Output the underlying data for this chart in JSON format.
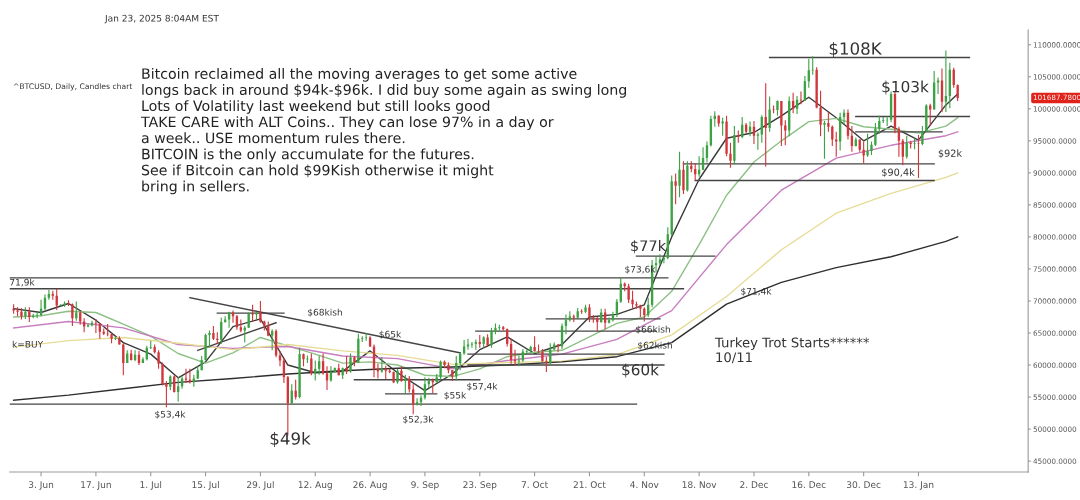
{
  "chart_data": {
    "type": "candlestick",
    "subtitle": "^BTCUSD, Daily, Candles chart",
    "x": [
      "2024-05-27",
      "2024-05-28",
      "2024-05-29",
      "2024-05-30",
      "2024-05-31",
      "2024-06-01",
      "2024-06-02",
      "2024-06-03",
      "2024-06-04",
      "2024-06-05",
      "2024-06-06",
      "2024-06-07",
      "2024-06-08",
      "2024-06-09",
      "2024-06-10",
      "2024-06-11",
      "2024-06-12",
      "2024-06-13",
      "2024-06-14",
      "2024-06-15",
      "2024-06-16",
      "2024-06-17",
      "2024-06-18",
      "2024-06-19",
      "2024-06-20",
      "2024-06-21",
      "2024-06-22",
      "2024-06-23",
      "2024-06-24",
      "2024-06-25",
      "2024-06-26",
      "2024-06-27",
      "2024-06-28",
      "2024-06-29",
      "2024-06-30",
      "2024-07-01",
      "2024-07-02",
      "2024-07-03",
      "2024-07-04",
      "2024-07-05",
      "2024-07-06",
      "2024-07-07",
      "2024-07-08",
      "2024-07-09",
      "2024-07-10",
      "2024-07-11",
      "2024-07-12",
      "2024-07-13",
      "2024-07-14",
      "2024-07-15",
      "2024-07-16",
      "2024-07-17",
      "2024-07-18",
      "2024-07-19",
      "2024-07-20",
      "2024-07-21",
      "2024-07-22",
      "2024-07-23",
      "2024-07-24",
      "2024-07-25",
      "2024-07-26",
      "2024-07-27",
      "2024-07-28",
      "2024-07-29",
      "2024-07-30",
      "2024-07-31",
      "2024-08-01",
      "2024-08-02",
      "2024-08-03",
      "2024-08-04",
      "2024-08-05",
      "2024-08-06",
      "2024-08-07",
      "2024-08-08",
      "2024-08-09",
      "2024-08-10",
      "2024-08-11",
      "2024-08-12",
      "2024-08-13",
      "2024-08-14",
      "2024-08-15",
      "2024-08-16",
      "2024-08-17",
      "2024-08-18",
      "2024-08-19",
      "2024-08-20",
      "2024-08-21",
      "2024-08-22",
      "2024-08-23",
      "2024-08-24",
      "2024-08-25",
      "2024-08-26",
      "2024-08-27",
      "2024-08-28",
      "2024-08-29",
      "2024-08-30",
      "2024-08-31",
      "2024-09-01",
      "2024-09-02",
      "2024-09-03",
      "2024-09-04",
      "2024-09-05",
      "2024-09-06",
      "2024-09-07",
      "2024-09-08",
      "2024-09-09",
      "2024-09-10",
      "2024-09-11",
      "2024-09-12",
      "2024-09-13",
      "2024-09-14",
      "2024-09-15",
      "2024-09-16",
      "2024-09-17",
      "2024-09-18",
      "2024-09-19",
      "2024-09-20",
      "2024-09-21",
      "2024-09-22",
      "2024-09-23",
      "2024-09-24",
      "2024-09-25",
      "2024-09-26",
      "2024-09-27",
      "2024-09-28",
      "2024-09-29",
      "2024-09-30",
      "2024-10-01",
      "2024-10-02",
      "2024-10-03",
      "2024-10-04",
      "2024-10-05",
      "2024-10-06",
      "2024-10-07",
      "2024-10-08",
      "2024-10-09",
      "2024-10-10",
      "2024-10-11",
      "2024-10-12",
      "2024-10-13",
      "2024-10-14",
      "2024-10-15",
      "2024-10-16",
      "2024-10-17",
      "2024-10-18",
      "2024-10-19",
      "2024-10-20",
      "2024-10-21",
      "2024-10-22",
      "2024-10-23",
      "2024-10-24",
      "2024-10-25",
      "2024-10-26",
      "2024-10-27",
      "2024-10-28",
      "2024-10-29",
      "2024-10-30",
      "2024-10-31",
      "2024-11-01",
      "2024-11-02",
      "2024-11-03",
      "2024-11-04",
      "2024-11-05",
      "2024-11-06",
      "2024-11-07",
      "2024-11-08",
      "2024-11-09",
      "2024-11-10",
      "2024-11-11",
      "2024-11-12",
      "2024-11-13",
      "2024-11-14",
      "2024-11-15",
      "2024-11-16",
      "2024-11-17",
      "2024-11-18",
      "2024-11-19",
      "2024-11-20",
      "2024-11-21",
      "2024-11-22",
      "2024-11-23",
      "2024-11-24",
      "2024-11-25",
      "2024-11-26",
      "2024-11-27",
      "2024-11-28",
      "2024-11-29",
      "2024-11-30",
      "2024-12-01",
      "2024-12-02",
      "2024-12-03",
      "2024-12-04",
      "2024-12-05",
      "2024-12-06",
      "2024-12-07",
      "2024-12-08",
      "2024-12-09",
      "2024-12-10",
      "2024-12-11",
      "2024-12-12",
      "2024-12-13",
      "2024-12-14",
      "2024-12-15",
      "2024-12-16",
      "2024-12-17",
      "2024-12-18",
      "2024-12-19",
      "2024-12-20",
      "2024-12-21",
      "2024-12-22",
      "2024-12-23",
      "2024-12-24",
      "2024-12-25",
      "2024-12-26",
      "2024-12-27",
      "2024-12-28",
      "2024-12-29",
      "2024-12-30",
      "2024-12-31",
      "2025-01-01",
      "2025-01-02",
      "2025-01-03",
      "2025-01-04",
      "2025-01-05",
      "2025-01-06",
      "2025-01-07",
      "2025-01-08",
      "2025-01-09",
      "2025-01-10",
      "2025-01-11",
      "2025-01-12",
      "2025-01-13",
      "2025-01-14",
      "2025-01-15",
      "2025-01-16",
      "2025-01-17",
      "2025-01-18",
      "2025-01-19",
      "2025-01-20",
      "2025-01-21",
      "2025-01-22",
      "2025-01-23"
    ],
    "ohlc": [
      [
        68800,
        69500,
        68000,
        68500
      ],
      [
        68500,
        69000,
        67600,
        68300
      ],
      [
        68300,
        68900,
        67100,
        67600
      ],
      [
        67600,
        69000,
        67200,
        68300
      ],
      [
        68300,
        69000,
        66700,
        67500
      ],
      [
        67500,
        68000,
        67300,
        67700
      ],
      [
        67700,
        68200,
        67300,
        67800
      ],
      [
        67800,
        70200,
        67600,
        68800
      ],
      [
        68800,
        71000,
        68600,
        70500
      ],
      [
        70500,
        71700,
        70200,
        71100
      ],
      [
        71100,
        71600,
        70200,
        70800
      ],
      [
        70800,
        71900,
        68600,
        69300
      ],
      [
        69300,
        69500,
        69200,
        69400
      ],
      [
        69400,
        69900,
        69100,
        69600
      ],
      [
        69600,
        70100,
        69200,
        69500
      ],
      [
        69500,
        69600,
        66100,
        67300
      ],
      [
        67300,
        69900,
        66900,
        68200
      ],
      [
        68200,
        68400,
        66300,
        66800
      ],
      [
        66800,
        67300,
        65100,
        66000
      ],
      [
        66000,
        66500,
        65900,
        66200
      ],
      [
        66200,
        66900,
        66000,
        66600
      ],
      [
        66600,
        67200,
        65000,
        66500
      ],
      [
        66500,
        66500,
        64100,
        65200
      ],
      [
        65200,
        65700,
        64700,
        64900
      ],
      [
        64900,
        66400,
        64500,
        64800
      ],
      [
        64800,
        65000,
        63400,
        64100
      ],
      [
        64100,
        64500,
        63900,
        64200
      ],
      [
        64200,
        64500,
        63200,
        63200
      ],
      [
        63200,
        63400,
        58400,
        60300
      ],
      [
        60300,
        62300,
        60300,
        61800
      ],
      [
        61800,
        62400,
        60700,
        60800
      ],
      [
        60800,
        62300,
        60600,
        61600
      ],
      [
        61600,
        62200,
        60000,
        60300
      ],
      [
        60300,
        61200,
        60300,
        60900
      ],
      [
        60900,
        63000,
        60700,
        62700
      ],
      [
        62700,
        63800,
        62500,
        62800
      ],
      [
        62800,
        63200,
        61800,
        62000
      ],
      [
        62000,
        62300,
        59400,
        60200
      ],
      [
        60200,
        60400,
        56800,
        57000
      ],
      [
        57000,
        57500,
        53400,
        56600
      ],
      [
        56600,
        58400,
        56100,
        58200
      ],
      [
        58200,
        58400,
        55700,
        55800
      ],
      [
        55800,
        58100,
        54300,
        56700
      ],
      [
        56700,
        58200,
        56300,
        57900
      ],
      [
        57900,
        59400,
        57200,
        57700
      ],
      [
        57700,
        59400,
        57100,
        57300
      ],
      [
        57300,
        58500,
        56600,
        57900
      ],
      [
        57900,
        59800,
        57800,
        59200
      ],
      [
        59200,
        61400,
        59200,
        60800
      ],
      [
        60800,
        64900,
        60700,
        64700
      ],
      [
        64700,
        65400,
        62700,
        65000
      ],
      [
        65000,
        66100,
        63900,
        64100
      ],
      [
        64100,
        65100,
        63300,
        63900
      ],
      [
        63900,
        67400,
        63300,
        66700
      ],
      [
        66700,
        67600,
        66600,
        67100
      ],
      [
        67100,
        68300,
        65800,
        68200
      ],
      [
        68200,
        68500,
        66600,
        67600
      ],
      [
        67600,
        67800,
        65500,
        65900
      ],
      [
        65900,
        67100,
        65100,
        65400
      ],
      [
        65400,
        66100,
        63500,
        65800
      ],
      [
        65800,
        68200,
        65800,
        68000
      ],
      [
        68000,
        69400,
        66700,
        67900
      ],
      [
        67900,
        68300,
        67100,
        68200
      ],
      [
        68200,
        70000,
        66600,
        66800
      ],
      [
        66800,
        66900,
        65400,
        66200
      ],
      [
        66200,
        66800,
        64500,
        64600
      ],
      [
        64600,
        65600,
        62300,
        65300
      ],
      [
        65300,
        65600,
        61200,
        61500
      ],
      [
        61500,
        62200,
        59800,
        60700
      ],
      [
        60700,
        61100,
        57200,
        58100
      ],
      [
        58100,
        58300,
        49000,
        54000
      ],
      [
        54000,
        57000,
        54000,
        56000
      ],
      [
        56000,
        57700,
        54600,
        55000
      ],
      [
        55000,
        62700,
        54800,
        61700
      ],
      [
        61700,
        61800,
        59800,
        60900
      ],
      [
        60900,
        61500,
        60300,
        61000
      ],
      [
        61000,
        61800,
        58400,
        58700
      ],
      [
        58700,
        60700,
        57600,
        59400
      ],
      [
        59400,
        61500,
        58500,
        60600
      ],
      [
        60600,
        61800,
        58500,
        58700
      ],
      [
        58700,
        59800,
        56100,
        57600
      ],
      [
        57600,
        59800,
        57400,
        58900
      ],
      [
        58900,
        59600,
        58800,
        59500
      ],
      [
        59500,
        60200,
        58400,
        58400
      ],
      [
        58400,
        59600,
        57800,
        59500
      ],
      [
        59500,
        61400,
        58600,
        59000
      ],
      [
        59000,
        61800,
        58800,
        61200
      ],
      [
        61200,
        61400,
        59800,
        60400
      ],
      [
        60400,
        64900,
        60300,
        64100
      ],
      [
        64100,
        64500,
        63600,
        64200
      ],
      [
        64200,
        65000,
        63800,
        64300
      ],
      [
        64300,
        64500,
        62800,
        62900
      ],
      [
        62900,
        63200,
        58100,
        59400
      ],
      [
        59400,
        60200,
        57900,
        59000
      ],
      [
        59000,
        61200,
        58800,
        59400
      ],
      [
        59400,
        59900,
        57800,
        59100
      ],
      [
        59100,
        59400,
        58700,
        58900
      ],
      [
        58900,
        59000,
        57200,
        57300
      ],
      [
        57300,
        59400,
        57100,
        59100
      ],
      [
        59100,
        59800,
        57400,
        57500
      ],
      [
        57500,
        58500,
        55600,
        57900
      ],
      [
        57900,
        58300,
        55700,
        56200
      ],
      [
        56200,
        57000,
        52300,
        53900
      ],
      [
        53900,
        54800,
        53700,
        54200
      ],
      [
        54200,
        55300,
        53600,
        54900
      ],
      [
        54900,
        58100,
        54600,
        57000
      ],
      [
        57000,
        58000,
        56400,
        57600
      ],
      [
        57600,
        57900,
        55600,
        57300
      ],
      [
        57300,
        58600,
        57300,
        58100
      ],
      [
        58100,
        60700,
        57700,
        60500
      ],
      [
        60500,
        60700,
        59500,
        60000
      ],
      [
        60000,
        60400,
        58700,
        59200
      ],
      [
        59200,
        59200,
        57500,
        58200
      ],
      [
        58200,
        61400,
        57600,
        60300
      ],
      [
        60300,
        61800,
        59200,
        61800
      ],
      [
        61800,
        63900,
        61600,
        62900
      ],
      [
        62900,
        64100,
        62400,
        63200
      ],
      [
        63200,
        63600,
        62700,
        63300
      ],
      [
        63300,
        64000,
        62400,
        63600
      ],
      [
        63600,
        64700,
        62700,
        63300
      ],
      [
        63300,
        64500,
        62700,
        64300
      ],
      [
        64300,
        64800,
        62900,
        63100
      ],
      [
        63100,
        65800,
        62700,
        65200
      ],
      [
        65200,
        66500,
        64800,
        65800
      ],
      [
        65800,
        66300,
        65400,
        65900
      ],
      [
        65900,
        66100,
        65400,
        65600
      ],
      [
        65600,
        65700,
        62900,
        63300
      ],
      [
        63300,
        64100,
        60200,
        60800
      ],
      [
        60800,
        62400,
        59900,
        60600
      ],
      [
        60600,
        61500,
        59800,
        60700
      ],
      [
        60700,
        62500,
        60500,
        62100
      ],
      [
        62100,
        62400,
        61700,
        62200
      ],
      [
        62200,
        63000,
        61900,
        62800
      ],
      [
        62800,
        64500,
        62100,
        62200
      ],
      [
        62200,
        63200,
        61800,
        62100
      ],
      [
        62100,
        62500,
        60500,
        60600
      ],
      [
        60600,
        61300,
        58900,
        60300
      ],
      [
        60300,
        63400,
        60100,
        62400
      ],
      [
        62400,
        63500,
        62400,
        63200
      ],
      [
        63200,
        63300,
        62000,
        62900
      ],
      [
        62900,
        66500,
        62500,
        66100
      ],
      [
        66100,
        67900,
        64800,
        67000
      ],
      [
        67000,
        68400,
        66800,
        67600
      ],
      [
        67600,
        67900,
        66700,
        67400
      ],
      [
        67400,
        68900,
        67300,
        68400
      ],
      [
        68400,
        68700,
        68000,
        68300
      ],
      [
        68300,
        69400,
        68100,
        69000
      ],
      [
        69000,
        69500,
        66700,
        67400
      ],
      [
        67400,
        67800,
        66600,
        67300
      ],
      [
        67300,
        67500,
        65300,
        66700
      ],
      [
        66700,
        68800,
        66600,
        68200
      ],
      [
        68200,
        68800,
        65600,
        66600
      ],
      [
        66600,
        67400,
        66500,
        67000
      ],
      [
        67000,
        68300,
        66800,
        67900
      ],
      [
        67900,
        70300,
        67500,
        69900
      ],
      [
        69900,
        73600,
        69700,
        72700
      ],
      [
        72700,
        72900,
        71500,
        72300
      ],
      [
        72300,
        72700,
        69700,
        70200
      ],
      [
        70200,
        71600,
        68800,
        69500
      ],
      [
        69500,
        69900,
        68800,
        69300
      ],
      [
        69300,
        69400,
        67500,
        68800
      ],
      [
        68800,
        69000,
        66800,
        67800
      ],
      [
        67800,
        70500,
        67500,
        69400
      ],
      [
        69400,
        76400,
        69000,
        75600
      ],
      [
        75600,
        76900,
        74500,
        75900
      ],
      [
        75900,
        77300,
        75600,
        76500
      ],
      [
        76500,
        76900,
        75900,
        76700
      ],
      [
        76700,
        81500,
        76500,
        80400
      ],
      [
        80400,
        89600,
        80200,
        88700
      ],
      [
        88700,
        89900,
        85100,
        88000
      ],
      [
        88000,
        93300,
        86200,
        90500
      ],
      [
        90500,
        91800,
        86700,
        87300
      ],
      [
        87300,
        91800,
        87100,
        91100
      ],
      [
        91100,
        91800,
        90100,
        90600
      ],
      [
        90600,
        91500,
        88800,
        89800
      ],
      [
        89800,
        92600,
        89400,
        90500
      ],
      [
        90500,
        94000,
        90400,
        92300
      ],
      [
        92300,
        94900,
        91600,
        94300
      ],
      [
        94300,
        98900,
        94100,
        98400
      ],
      [
        98400,
        99600,
        97200,
        98900
      ],
      [
        98900,
        99000,
        97200,
        97700
      ],
      [
        97700,
        98600,
        95800,
        98000
      ],
      [
        98000,
        98900,
        92600,
        93000
      ],
      [
        93000,
        94700,
        90800,
        91900
      ],
      [
        91900,
        97300,
        91300,
        95900
      ],
      [
        95900,
        96600,
        94700,
        95600
      ],
      [
        95600,
        98700,
        95400,
        97500
      ],
      [
        97500,
        97800,
        96200,
        96400
      ],
      [
        96400,
        98000,
        95700,
        97200
      ],
      [
        97200,
        98100,
        94500,
        95800
      ],
      [
        95800,
        96300,
        93600,
        96000
      ],
      [
        96000,
        99000,
        94700,
        98700
      ],
      [
        98700,
        104000,
        91000,
        97000
      ],
      [
        97000,
        101900,
        96400,
        99900
      ],
      [
        99900,
        100500,
        99300,
        99800
      ],
      [
        99800,
        101300,
        98900,
        101200
      ],
      [
        101200,
        101200,
        94200,
        97400
      ],
      [
        97400,
        98200,
        94300,
        96600
      ],
      [
        96600,
        101900,
        95700,
        101200
      ],
      [
        101200,
        102500,
        99300,
        100000
      ],
      [
        100000,
        102000,
        99200,
        101400
      ],
      [
        101400,
        102700,
        100700,
        101300
      ],
      [
        101300,
        105100,
        101200,
        104300
      ],
      [
        104300,
        107800,
        103300,
        106000
      ],
      [
        106000,
        108200,
        105300,
        106100
      ],
      [
        106100,
        106500,
        100100,
        100200
      ],
      [
        100200,
        102800,
        95700,
        97500
      ],
      [
        97500,
        98100,
        92200,
        97800
      ],
      [
        97800,
        99500,
        96400,
        97200
      ],
      [
        97200,
        97400,
        94200,
        95200
      ],
      [
        95200,
        96400,
        92500,
        94900
      ],
      [
        94900,
        99400,
        93500,
        98700
      ],
      [
        98700,
        99900,
        97600,
        99400
      ],
      [
        99400,
        99900,
        95200,
        95800
      ],
      [
        95800,
        97300,
        93300,
        94200
      ],
      [
        94200,
        95500,
        94100,
        95200
      ],
      [
        95200,
        95200,
        93300,
        93600
      ],
      [
        93600,
        94900,
        91500,
        92700
      ],
      [
        92700,
        96100,
        92500,
        93400
      ],
      [
        93400,
        94900,
        92800,
        94400
      ],
      [
        94400,
        97800,
        94200,
        96900
      ],
      [
        96900,
        98900,
        96100,
        98100
      ],
      [
        98100,
        98700,
        97800,
        98200
      ],
      [
        98200,
        98800,
        97300,
        98300
      ],
      [
        98300,
        102700,
        97900,
        102300
      ],
      [
        102300,
        102700,
        96200,
        96900
      ],
      [
        96900,
        97200,
        92500,
        95000
      ],
      [
        95000,
        95300,
        91200,
        92500
      ],
      [
        92500,
        95800,
        92200,
        94700
      ],
      [
        94700,
        95000,
        93800,
        94500
      ],
      [
        94500,
        95400,
        93700,
        94600
      ],
      [
        94600,
        95900,
        89200,
        94500
      ],
      [
        94500,
        97300,
        94300,
        96500
      ],
      [
        96500,
        100700,
        96500,
        100500
      ],
      [
        100500,
        100800,
        97300,
        99900
      ],
      [
        99900,
        105900,
        99900,
        104100
      ],
      [
        104100,
        104900,
        102300,
        104400
      ],
      [
        104400,
        106300,
        99500,
        101100
      ],
      [
        101100,
        109100,
        99500,
        102000
      ],
      [
        102000,
        107200,
        100100,
        106100
      ],
      [
        106100,
        106400,
        103300,
        103700
      ],
      [
        103700,
        103800,
        101200,
        101690
      ]
    ],
    "series": [
      {
        "type": "line",
        "color": "#3a3a3a",
        "x": [
          "2024-05-27",
          "2024-06-03",
          "2024-06-10",
          "2024-06-17",
          "2024-06-24",
          "2024-07-01",
          "2024-07-08",
          "2024-07-15",
          "2024-07-22",
          "2024-07-29",
          "2024-08-05",
          "2024-08-12",
          "2024-08-19",
          "2024-08-26",
          "2024-09-02",
          "2024-09-09",
          "2024-09-16",
          "2024-09-23",
          "2024-09-30",
          "2024-10-07",
          "2024-10-14",
          "2024-10-21",
          "2024-10-28",
          "2024-11-04",
          "2024-11-11",
          "2024-11-18",
          "2024-11-25",
          "2024-12-02",
          "2024-12-09",
          "2024-12-16",
          "2024-12-23",
          "2024-12-30",
          "2025-01-06",
          "2025-01-13",
          "2025-01-20",
          "2025-01-23"
        ],
        "values": [
          68800,
          68200,
          69600,
          67000,
          63500,
          61700,
          58000,
          60500,
          66000,
          67200,
          60000,
          58800,
          59000,
          62200,
          58800,
          56000,
          58600,
          62400,
          64400,
          61800,
          63200,
          67500,
          67900,
          69400,
          80000,
          89000,
          95400,
          96300,
          98900,
          101800,
          98600,
          95000,
          97300,
          95100,
          100600,
          102300
        ]
      },
      {
        "type": "line",
        "color": "#8cc084",
        "x": [
          "2024-05-27",
          "2024-06-03",
          "2024-06-10",
          "2024-06-17",
          "2024-06-24",
          "2024-07-01",
          "2024-07-08",
          "2024-07-15",
          "2024-07-22",
          "2024-07-29",
          "2024-08-05",
          "2024-08-12",
          "2024-08-19",
          "2024-08-26",
          "2024-09-02",
          "2024-09-09",
          "2024-09-16",
          "2024-09-23",
          "2024-09-30",
          "2024-10-07",
          "2024-10-14",
          "2024-10-21",
          "2024-10-28",
          "2024-11-04",
          "2024-11-11",
          "2024-11-18",
          "2024-11-25",
          "2024-12-02",
          "2024-12-09",
          "2024-12-16",
          "2024-12-23",
          "2024-12-30",
          "2025-01-06",
          "2025-01-13",
          "2025-01-20",
          "2025-01-23"
        ],
        "values": [
          67500,
          67700,
          68400,
          68200,
          66400,
          64500,
          61800,
          60300,
          61900,
          64300,
          63000,
          61700,
          60300,
          60500,
          60000,
          58400,
          58200,
          59400,
          61300,
          62000,
          62300,
          64400,
          66500,
          67500,
          71500,
          78800,
          86500,
          91700,
          95000,
          98000,
          98500,
          97200,
          96800,
          96200,
          97300,
          98600
        ]
      },
      {
        "type": "line",
        "color": "#c77dbf",
        "x": [
          "2024-05-27",
          "2024-06-10",
          "2024-06-24",
          "2024-07-08",
          "2024-07-22",
          "2024-08-05",
          "2024-08-19",
          "2024-09-02",
          "2024-09-16",
          "2024-09-30",
          "2024-10-14",
          "2024-10-28",
          "2024-11-11",
          "2024-11-25",
          "2024-12-09",
          "2024-12-23",
          "2025-01-06",
          "2025-01-20",
          "2025-01-23"
        ],
        "values": [
          65800,
          66800,
          65800,
          63200,
          62600,
          62900,
          61400,
          61000,
          59400,
          60700,
          61700,
          64000,
          68500,
          78800,
          87300,
          92300,
          94300,
          95800,
          96400
        ]
      },
      {
        "type": "line",
        "color": "#e6dc96",
        "x": [
          "2024-05-27",
          "2024-06-10",
          "2024-06-24",
          "2024-07-08",
          "2024-07-22",
          "2024-08-05",
          "2024-08-19",
          "2024-09-02",
          "2024-09-16",
          "2024-09-30",
          "2024-10-14",
          "2024-10-28",
          "2024-11-11",
          "2024-11-25",
          "2024-12-09",
          "2024-12-23",
          "2025-01-06",
          "2025-01-20",
          "2025-01-23"
        ],
        "values": [
          62800,
          63800,
          64300,
          63400,
          62400,
          63200,
          62200,
          61500,
          60100,
          60400,
          60600,
          61600,
          64700,
          70700,
          78000,
          83700,
          86800,
          89300,
          90000
        ]
      },
      {
        "type": "line",
        "color": "#2e2e2e",
        "x": [
          "2024-05-27",
          "2024-06-10",
          "2024-06-24",
          "2024-07-08",
          "2024-07-22",
          "2024-08-05",
          "2024-08-19",
          "2024-09-02",
          "2024-09-16",
          "2024-09-30",
          "2024-10-14",
          "2024-10-28",
          "2024-11-11",
          "2024-11-25",
          "2024-12-09",
          "2024-12-23",
          "2025-01-06",
          "2025-01-20",
          "2025-01-23"
        ],
        "values": [
          54500,
          55300,
          56300,
          57300,
          57900,
          58600,
          59100,
          59500,
          59700,
          60000,
          60500,
          61300,
          63500,
          69500,
          72900,
          75200,
          76900,
          79300,
          80000
        ]
      },
      {
        "type": "line",
        "color": "#444444",
        "x": [
          "2024-05-26",
          "2024-11-10"
        ],
        "values": [
          73600,
          73600
        ]
      },
      {
        "type": "line",
        "color": "#444444",
        "x": [
          "2024-05-26",
          "2024-11-14"
        ],
        "values": [
          71900,
          71900
        ]
      },
      {
        "type": "line",
        "color": "#444444",
        "x": [
          "2024-11-02",
          "2024-11-22"
        ],
        "values": [
          77000,
          77000
        ]
      },
      {
        "type": "line",
        "color": "#444444",
        "x": [
          "2024-07-18",
          "2024-08-04"
        ],
        "values": [
          68100,
          68100
        ]
      },
      {
        "type": "line",
        "color": "#444444",
        "x": [
          "2024-07-11",
          "2024-09-18"
        ],
        "values": [
          70500,
          61900
        ]
      },
      {
        "type": "line",
        "color": "#444444",
        "x": [
          "2024-07-13",
          "2024-08-02"
        ],
        "values": [
          62300,
          66600
        ]
      },
      {
        "type": "line",
        "color": "#444444",
        "x": [
          "2024-10-10",
          "2024-11-08"
        ],
        "values": [
          67200,
          67200
        ]
      },
      {
        "type": "line",
        "color": "#444444",
        "x": [
          "2024-09-22",
          "2024-11-07"
        ],
        "values": [
          65300,
          65300
        ]
      },
      {
        "type": "line",
        "color": "#444444",
        "x": [
          "2024-09-20",
          "2024-11-09"
        ],
        "values": [
          61700,
          61700
        ]
      },
      {
        "type": "line",
        "color": "#444444",
        "x": [
          "2024-09-20",
          "2024-11-09"
        ],
        "values": [
          60000,
          60000
        ]
      },
      {
        "type": "line",
        "color": "#444444",
        "x": [
          "2024-08-22",
          "2024-09-23"
        ],
        "values": [
          57700,
          57700
        ]
      },
      {
        "type": "line",
        "color": "#444444",
        "x": [
          "2024-08-30",
          "2024-09-12"
        ],
        "values": [
          55500,
          55500
        ]
      },
      {
        "type": "line",
        "color": "#444444",
        "x": [
          "2024-05-26",
          "2024-11-02"
        ],
        "values": [
          53900,
          53900
        ]
      },
      {
        "type": "line",
        "color": "#444444",
        "x": [
          "2024-12-06",
          "2025-01-26"
        ],
        "values": [
          108000,
          108000
        ]
      },
      {
        "type": "line",
        "color": "#444444",
        "x": [
          "2024-12-28",
          "2025-01-26"
        ],
        "values": [
          98800,
          98800
        ]
      },
      {
        "type": "line",
        "color": "#444444",
        "x": [
          "2024-12-28",
          "2025-01-19"
        ],
        "values": [
          96400,
          96400
        ]
      },
      {
        "type": "line",
        "color": "#444444",
        "x": [
          "2024-11-14",
          "2025-01-17"
        ],
        "values": [
          91400,
          91400
        ]
      },
      {
        "type": "line",
        "color": "#444444",
        "x": [
          "2024-11-17",
          "2025-01-17"
        ],
        "values": [
          88800,
          88800
        ]
      }
    ],
    "xlim": [
      "2024-05-26",
      "2025-02-10"
    ],
    "xticks": [
      {
        "value": "2024-06-03",
        "label": "3. Jun"
      },
      {
        "value": "2024-06-17",
        "label": "17. Jun"
      },
      {
        "value": "2024-07-01",
        "label": "1. Jul"
      },
      {
        "value": "2024-07-15",
        "label": "15. Jul"
      },
      {
        "value": "2024-07-29",
        "label": "29. Jul"
      },
      {
        "value": "2024-08-12",
        "label": "12. Aug"
      },
      {
        "value": "2024-08-26",
        "label": "26. Aug"
      },
      {
        "value": "2024-09-09",
        "label": "9. Sep"
      },
      {
        "value": "2024-09-23",
        "label": "23. Sep"
      },
      {
        "value": "2024-10-07",
        "label": "7. Oct"
      },
      {
        "value": "2024-10-21",
        "label": "21. Oct"
      },
      {
        "value": "2024-11-04",
        "label": "4. Nov"
      },
      {
        "value": "2024-11-18",
        "label": "18. Nov"
      },
      {
        "value": "2024-12-02",
        "label": "2. Dec"
      },
      {
        "value": "2024-12-16",
        "label": "16. Dec"
      },
      {
        "value": "2024-12-30",
        "label": "30. Dec"
      },
      {
        "value": "2025-01-13",
        "label": "13. Jan"
      }
    ],
    "ylim": [
      43300,
      112300
    ],
    "yticks": [
      {
        "value": 45000,
        "label": "45000.0000"
      },
      {
        "value": 50000,
        "label": "50000.0000"
      },
      {
        "value": 55000,
        "label": "55000.0000"
      },
      {
        "value": 60000,
        "label": "60000.0000"
      },
      {
        "value": 65000,
        "label": "65000.0000"
      },
      {
        "value": 70000,
        "label": "70000.0000"
      },
      {
        "value": 75000,
        "label": "75000.0000"
      },
      {
        "value": 80000,
        "label": "80000.0000"
      },
      {
        "value": 85000,
        "label": "85000.0000"
      },
      {
        "value": 90000,
        "label": "90000.0000"
      },
      {
        "value": 95000,
        "label": "95000.0000"
      },
      {
        "value": 100000,
        "label": "100000.0000"
      },
      {
        "value": 105000,
        "label": "105000.0000"
      },
      {
        "value": 110000,
        "label": "110000.0000"
      }
    ],
    "annotations": [
      "Bitcoin reclaimed all the moving averages to get some active\nlongs back in around $94k-$96k. I did buy some again as swing long\nLots of Volatility last weekend but still looks good\nTAKE CARE with ALT Coins.. They can lose 97% in a day or\na week.. USE momentum rules there.\nBITCOIN is the only accumulate for the futures.\nSee if Bitcoin can hold $99Kish otherwise it might\nbring in sellers.",
      "Jan 23, 2025 8:04AM EST",
      "101687.7800",
      "$108K",
      "$103k",
      "$77k",
      "$60k",
      "$49k",
      "Turkey Trot Starts******\n10/11",
      "71,9k",
      "$68kish",
      "$65k",
      "k=BUY",
      "$53,4k",
      "$52,3k",
      "$55k",
      "$57,4k",
      "$66kish",
      "$62kish",
      "$73,6k",
      "$71,4k",
      "$92k",
      "$90,4k"
    ]
  }
}
